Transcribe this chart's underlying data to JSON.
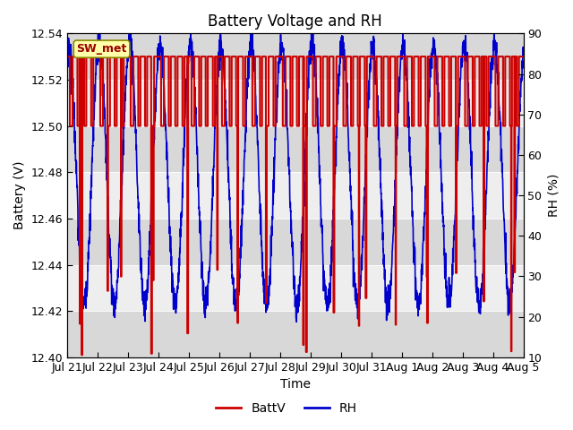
{
  "title": "Battery Voltage and RH",
  "xlabel": "Time",
  "ylabel_left": "Battery (V)",
  "ylabel_right": "RH (%)",
  "station_label": "SW_met",
  "ylim_left": [
    12.4,
    12.54
  ],
  "ylim_right": [
    10,
    90
  ],
  "yticks_left": [
    12.4,
    12.42,
    12.44,
    12.46,
    12.48,
    12.5,
    12.52,
    12.54
  ],
  "yticks_right": [
    10,
    20,
    30,
    40,
    50,
    60,
    70,
    80,
    90
  ],
  "xtick_labels": [
    "Jul 21",
    "Jul 22",
    "Jul 23",
    "Jul 24",
    "Jul 25",
    "Jul 26",
    "Jul 27",
    "Jul 28",
    "Jul 29",
    "Jul 30",
    "Jul 31",
    "Aug 1",
    "Aug 2",
    "Aug 3",
    "Aug 4",
    "Aug 5"
  ],
  "color_battv": "#cc0000",
  "color_rh": "#0000cc",
  "color_shade_dark": "#d8d8d8",
  "color_shade_light": "#eeeeee",
  "legend_battv": "BattV",
  "legend_rh": "RH",
  "title_fontsize": 12,
  "axis_fontsize": 10,
  "tick_fontsize": 9,
  "legend_fontsize": 10
}
